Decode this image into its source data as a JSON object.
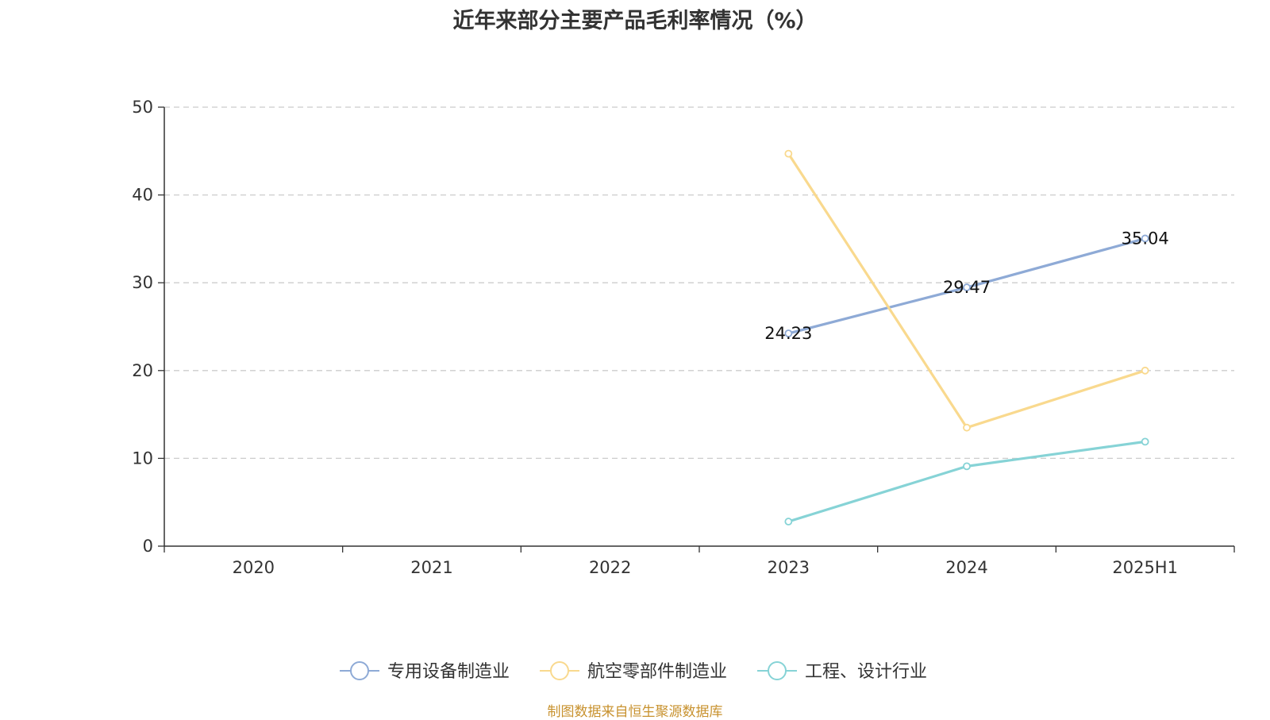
{
  "chart_data": {
    "type": "line",
    "title": "近年来部分主要产品毛利率情况（%）",
    "categories": [
      "2020",
      "2021",
      "2022",
      "2023",
      "2024",
      "2025H1"
    ],
    "ylim": [
      0,
      50
    ],
    "yticks": [
      0,
      10,
      20,
      30,
      40,
      50
    ],
    "grid": true,
    "legend_position": "bottom",
    "series": [
      {
        "name": "专用设备制造业",
        "color": "#8eaad6",
        "values": [
          null,
          null,
          null,
          24.23,
          29.47,
          35.04
        ],
        "show_labels": true
      },
      {
        "name": "航空零部件制造业",
        "color": "#f9d98e",
        "values": [
          null,
          null,
          null,
          44.7,
          13.5,
          20.0
        ],
        "show_labels": false
      },
      {
        "name": "工程、设计行业",
        "color": "#86d3d6",
        "values": [
          null,
          null,
          null,
          2.8,
          9.1,
          11.9
        ],
        "show_labels": false
      }
    ]
  },
  "source_note": "制图数据来自恒生聚源数据库"
}
